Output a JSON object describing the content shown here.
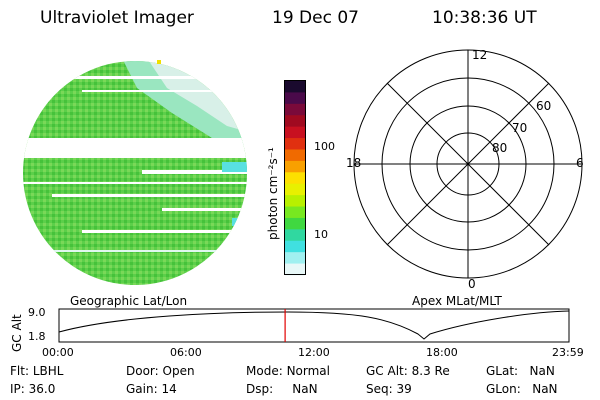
{
  "header": {
    "title": "Ultraviolet Imager",
    "date": "19 Dec 07",
    "time": "10:38:36 UT"
  },
  "colorbar": {
    "label": "photon cm⁻²s⁻¹",
    "ticks": [
      "100",
      "10"
    ],
    "colors": [
      "#1a0a2e",
      "#4a0a4a",
      "#7a0a3a",
      "#a00a20",
      "#c81020",
      "#e03010",
      "#f06a00",
      "#f8a000",
      "#fde000",
      "#e8f000",
      "#b8f000",
      "#78e820",
      "#40d840",
      "#30d8a0",
      "#40e0e0",
      "#a0f0f0",
      "#e8f8f8"
    ]
  },
  "image_labels": {
    "left": "Geographic Lat/Lon",
    "right": "Apex MLat/MLT"
  },
  "polar_plot": {
    "lat_labels": [
      "60",
      "70",
      "80"
    ],
    "mlt_labels": {
      "top": "12",
      "bottom": "0",
      "left": "18",
      "right": "6"
    }
  },
  "gc_alt_plot": {
    "ylabel": "GC Alt",
    "yticks": [
      "9.0",
      "1.8"
    ],
    "xticks": [
      "00:00",
      "06:00",
      "12:00",
      "18:00",
      "23:59"
    ],
    "marker_time_hours": 10.64,
    "marker_color": "#e00000"
  },
  "info": {
    "row1": [
      {
        "label": "Flt:",
        "value": "LBHL"
      },
      {
        "label": "Door:",
        "value": "Open"
      },
      {
        "label": "Mode:",
        "value": "Normal"
      },
      {
        "label": "GC Alt:",
        "value": "8.3 Re"
      },
      {
        "label": "GLat:",
        "value": "NaN"
      }
    ],
    "row2": [
      {
        "label": "IP:",
        "value": "36.0"
      },
      {
        "label": "Gain:",
        "value": "14"
      },
      {
        "label": "Dsp:",
        "value": "NaN"
      },
      {
        "label": "Seq:",
        "value": "39"
      },
      {
        "label": "GLon:",
        "value": "NaN"
      }
    ]
  }
}
